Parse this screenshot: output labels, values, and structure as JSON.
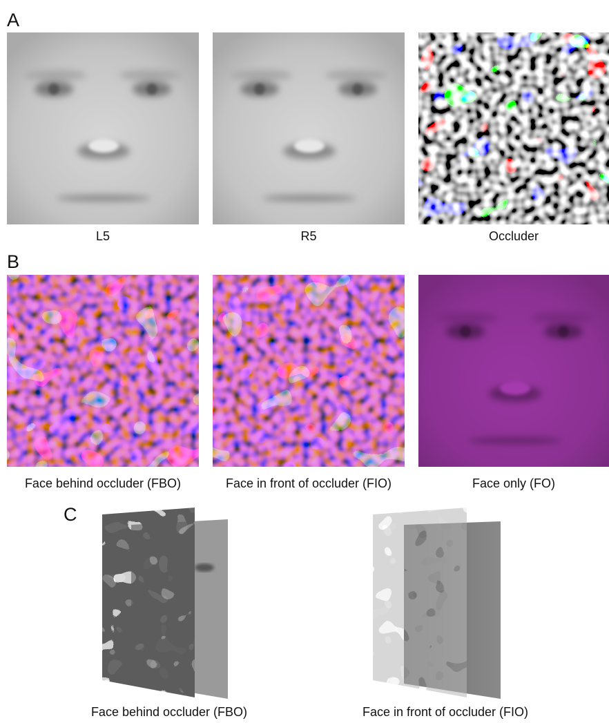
{
  "panels": [
    {
      "label": "A",
      "captions": [
        "L5",
        "R5",
        "Occluder"
      ]
    },
    {
      "label": "B",
      "captions": [
        "Face behind occluder (FBO)",
        "Face in front of occluder (FIO)",
        "Face only (FO)"
      ]
    },
    {
      "label": "C",
      "captions": [
        "Face behind occluder (FBO)",
        "Face in front of occluder (FIO)"
      ]
    }
  ]
}
